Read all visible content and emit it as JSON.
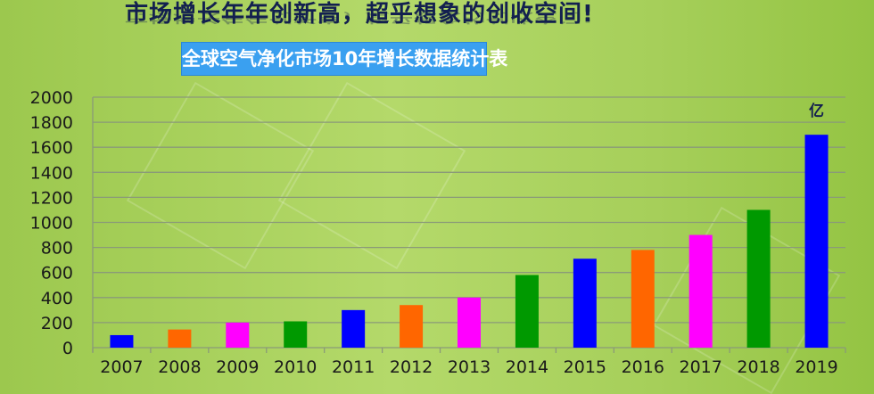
{
  "header": {
    "title": "市场增长年年创新高，超乎想象的创收空间!",
    "subtitle": "全球空气净化市场10年增长数据统计表"
  },
  "chart_data": {
    "type": "bar",
    "title": "全球空气净化市场10年增长数据统计表",
    "categories": [
      "2007",
      "2008",
      "2009",
      "2010",
      "2011",
      "2012",
      "2013",
      "2014",
      "2015",
      "2016",
      "2017",
      "2018",
      "2019"
    ],
    "values": [
      100,
      145,
      200,
      210,
      300,
      340,
      400,
      580,
      710,
      780,
      900,
      1100,
      1700
    ],
    "colors": [
      "#0000ff",
      "#ff6600",
      "#ff00ff",
      "#009900",
      "#0000ff",
      "#ff6600",
      "#ff00ff",
      "#009900",
      "#0000ff",
      "#ff6600",
      "#ff00ff",
      "#009900",
      "#0000ff"
    ],
    "unit_label": "亿",
    "ylim": [
      0,
      2000
    ],
    "yticks": [
      0,
      200,
      400,
      600,
      800,
      1000,
      1200,
      1400,
      1600,
      1800,
      2000
    ],
    "grid": true,
    "xlabel": "",
    "ylabel": ""
  }
}
